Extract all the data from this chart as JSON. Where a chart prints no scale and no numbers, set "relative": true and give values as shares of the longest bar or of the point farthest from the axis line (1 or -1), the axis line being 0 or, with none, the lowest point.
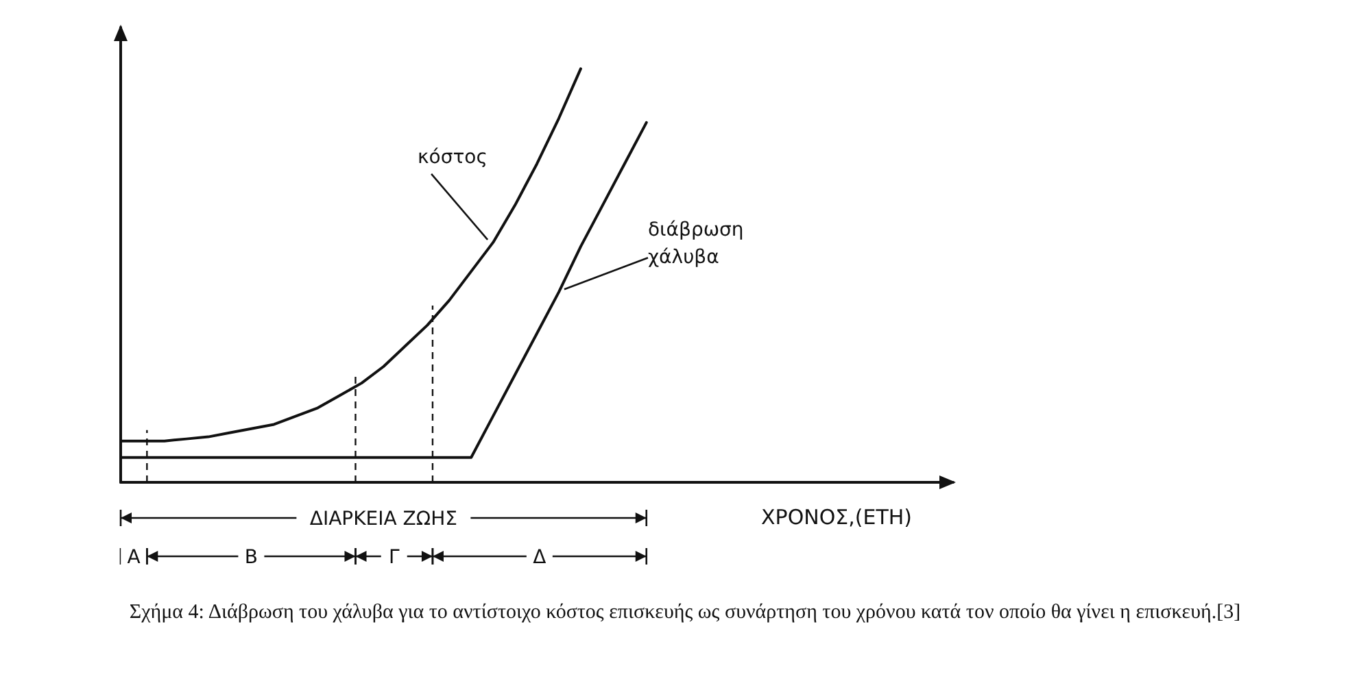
{
  "chart_data": {
    "type": "line",
    "relative": true,
    "xlabel": "ΧΡΟΝΟΣ,(ΕΤΗ)",
    "grid": false,
    "legend": false,
    "marker": "none",
    "line_style": "solid",
    "categories": [
      null,
      null,
      null,
      null,
      null,
      null,
      null,
      null,
      null,
      null,
      null,
      null,
      null,
      null,
      null,
      null,
      null,
      null,
      null,
      null,
      null,
      null,
      null,
      null,
      null,
      null,
      null,
      null,
      null,
      null,
      null,
      null,
      null,
      null,
      null,
      null,
      null,
      null,
      null
    ],
    "series": [
      {
        "name": "κόστος",
        "color": "#111111",
        "values": [
          0.1,
          0.1,
          0.1,
          0.105,
          0.11,
          0.12,
          0.13,
          0.14,
          0.16,
          0.18,
          0.21,
          0.24,
          0.28,
          0.33,
          0.38,
          0.44,
          0.51,
          0.58,
          0.67,
          0.77,
          0.88,
          1.0,
          null,
          null,
          null,
          null,
          null,
          null,
          null,
          null,
          null,
          null,
          null,
          null,
          null,
          null,
          null,
          null,
          null
        ]
      },
      {
        "name": "διάβρωση χάλυβα",
        "color": "#111111",
        "values": [
          0.06,
          0.06,
          0.06,
          0.06,
          0.06,
          0.06,
          0.06,
          0.06,
          0.06,
          0.06,
          0.06,
          0.06,
          0.06,
          0.06,
          0.06,
          0.06,
          0.06,
          0.16,
          0.26,
          0.36,
          0.46,
          0.57,
          0.67,
          0.77,
          0.87,
          null,
          null,
          null,
          null,
          null,
          null,
          null,
          null,
          null,
          null,
          null,
          null,
          null,
          null
        ]
      }
    ],
    "annotations": [
      "ΔΙΑΡΚΕΙΑ ΖΩΗΣ",
      "Α",
      "Β",
      "Γ",
      "Δ",
      "Σχήμα 4: Διάβρωση του χάλυβα για το αντίστοιχο κόστος επισκευής ως συνάρτηση του χρόνου κατά τον οποίο θα γίνει η επισκευή.[3]"
    ]
  }
}
